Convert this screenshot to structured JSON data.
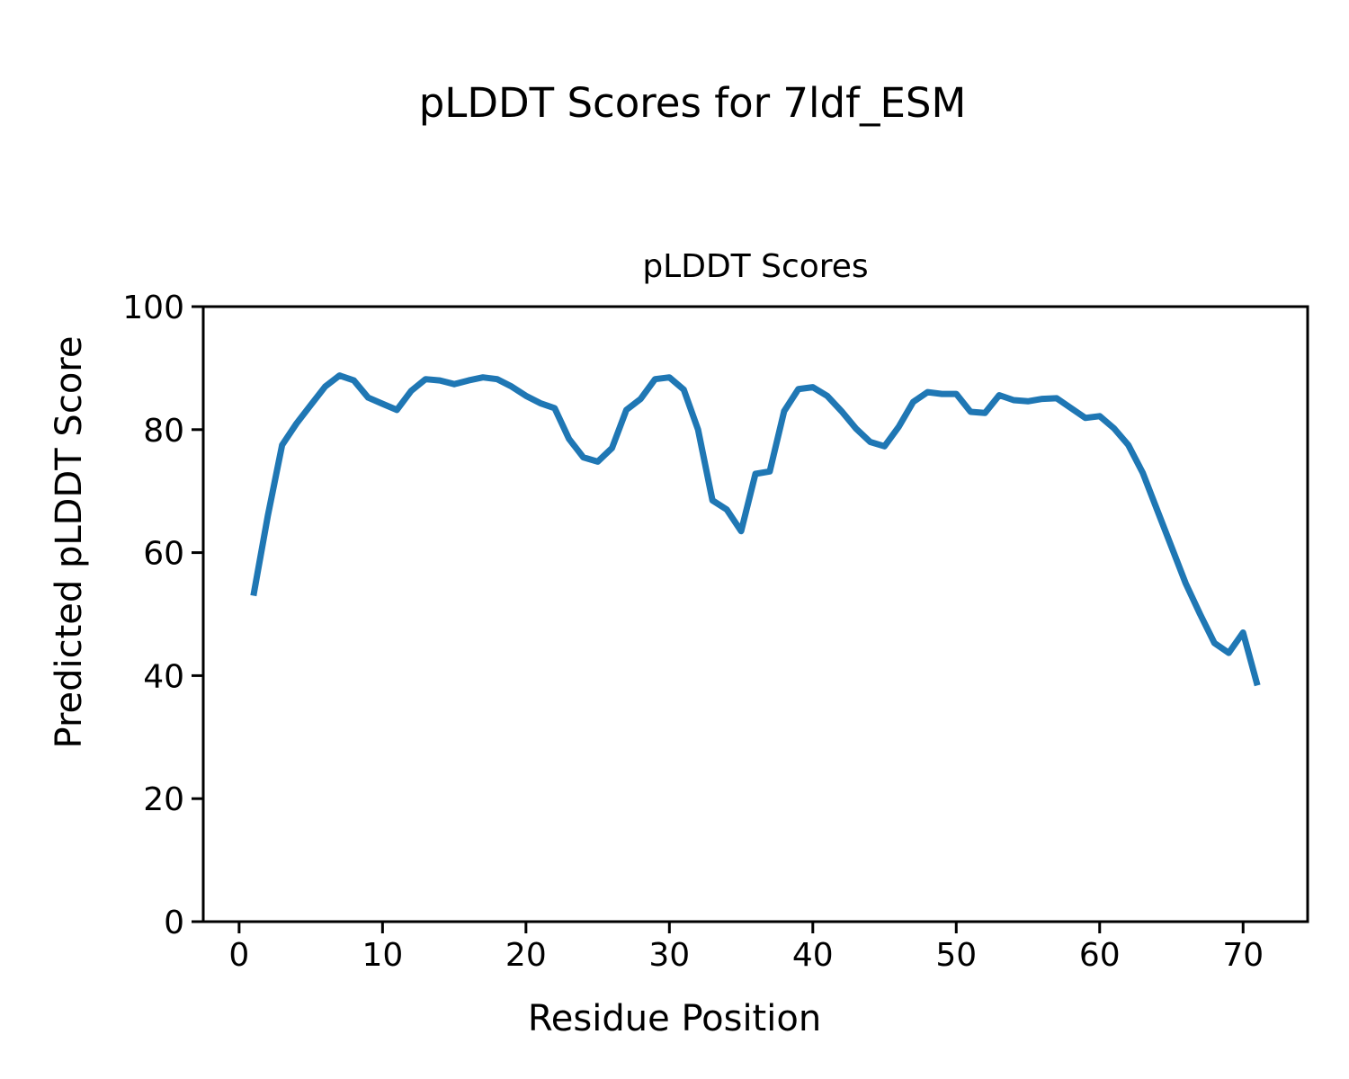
{
  "figure": {
    "suptitle": "pLDDT Scores for 7ldf_ESM",
    "axes_title": "pLDDT Scores",
    "xlabel": "Residue Position",
    "ylabel": "Predicted pLDDT Score"
  },
  "chart_data": {
    "type": "line",
    "title": "pLDDT Scores",
    "xlabel": "Residue Position",
    "ylabel": "Predicted pLDDT Score",
    "x": [
      1,
      2,
      3,
      4,
      5,
      6,
      7,
      8,
      9,
      10,
      11,
      12,
      13,
      14,
      15,
      16,
      17,
      18,
      19,
      20,
      21,
      22,
      23,
      24,
      25,
      26,
      27,
      28,
      29,
      30,
      31,
      32,
      33,
      34,
      35,
      36,
      37,
      38,
      39,
      40,
      41,
      42,
      43,
      44,
      45,
      46,
      47,
      48,
      49,
      50,
      51,
      52,
      53,
      54,
      55,
      56,
      57,
      58,
      59,
      60,
      61,
      62,
      63,
      64,
      65,
      66,
      67,
      68,
      69,
      70,
      71
    ],
    "y": [
      53,
      66,
      77.5,
      81,
      84,
      87,
      88.8,
      88,
      85.2,
      84.2,
      83.2,
      86.3,
      88.2,
      88,
      87.4,
      88,
      88.5,
      88.2,
      87,
      85.5,
      84.3,
      83.5,
      78.5,
      75.5,
      74.8,
      77,
      83.2,
      85,
      88.2,
      88.5,
      86.5,
      80,
      68.5,
      67,
      63.5,
      72.8,
      73.2,
      83,
      86.6,
      86.9,
      85.5,
      83,
      80.2,
      78,
      77.3,
      80.5,
      84.5,
      86.1,
      85.8,
      85.8,
      82.9,
      82.7,
      85.6,
      84.8,
      84.6,
      85,
      85.1,
      83.5,
      81.9,
      82.2,
      80.2,
      77.5,
      73,
      67,
      61,
      55,
      50,
      45.3,
      43.7,
      47,
      38.4
    ],
    "xlim": [
      -2.5,
      74.5
    ],
    "ylim": [
      0,
      100
    ],
    "xticks": [
      0,
      10,
      20,
      30,
      40,
      50,
      60,
      70
    ],
    "yticks": [
      0,
      20,
      40,
      60,
      80,
      100
    ],
    "grid": false,
    "legend": null,
    "line_color": "#1f77b4",
    "axis_color": "#000000"
  }
}
